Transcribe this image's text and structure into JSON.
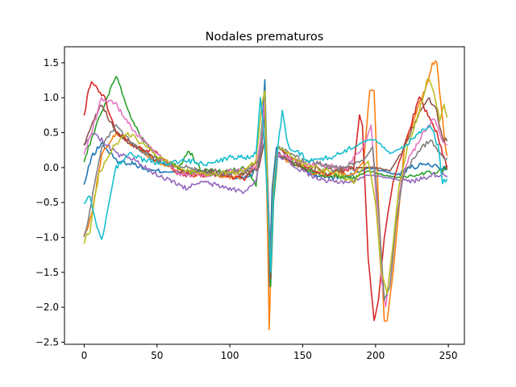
{
  "chart_data": {
    "type": "line",
    "title": "Nodales prematuros",
    "xlabel": "",
    "ylabel": "",
    "xlim": [
      -13.5,
      261
    ],
    "ylim": [
      -2.53,
      1.73
    ],
    "x_ticks": [
      0,
      50,
      100,
      150,
      200,
      250
    ],
    "x_tick_labels": [
      "0",
      "50",
      "100",
      "150",
      "200",
      "250"
    ],
    "y_ticks": [
      -2.5,
      -2.0,
      -1.5,
      -1.0,
      -0.5,
      0.0,
      0.5,
      1.0,
      1.5
    ],
    "y_tick_labels": [
      "−2.5",
      "−2.0",
      "−1.5",
      "−1.0",
      "−0.5",
      "0.0",
      "0.5",
      "1.0",
      "1.5"
    ],
    "grid": false,
    "legend": "none",
    "x_range": [
      0,
      249
    ],
    "series_keypoints_note": "approximate shape keypoints [x, y] per beat",
    "series": [
      {
        "color": "#1f77b4",
        "points": [
          [
            0,
            -0.25
          ],
          [
            5,
            0.15
          ],
          [
            12,
            0.35
          ],
          [
            22,
            0.1
          ],
          [
            35,
            0.05
          ],
          [
            45,
            -0.05
          ],
          [
            60,
            -0.05
          ],
          [
            70,
            -0.1
          ],
          [
            80,
            -0.05
          ],
          [
            95,
            -0.1
          ],
          [
            105,
            -0.15
          ],
          [
            115,
            -0.1
          ],
          [
            121,
            0.2
          ],
          [
            124,
            1.25
          ],
          [
            126,
            -0.3
          ],
          [
            127,
            -1.7
          ],
          [
            129,
            -0.3
          ],
          [
            132,
            0.3
          ],
          [
            140,
            0.2
          ],
          [
            155,
            -0.1
          ],
          [
            170,
            -0.15
          ],
          [
            185,
            -0.1
          ],
          [
            195,
            0.0
          ],
          [
            205,
            -0.05
          ],
          [
            215,
            -0.1
          ],
          [
            225,
            0.0
          ],
          [
            235,
            0.05
          ],
          [
            245,
            0.0
          ],
          [
            249,
            0.0
          ]
        ]
      },
      {
        "color": "#ff7f0e",
        "points": [
          [
            0,
            -1.0
          ],
          [
            5,
            -0.7
          ],
          [
            12,
            0.2
          ],
          [
            22,
            0.5
          ],
          [
            35,
            0.3
          ],
          [
            50,
            0.1
          ],
          [
            70,
            -0.1
          ],
          [
            90,
            -0.1
          ],
          [
            105,
            -0.15
          ],
          [
            118,
            0.0
          ],
          [
            122,
            0.5
          ],
          [
            124,
            0.9
          ],
          [
            126,
            -1.0
          ],
          [
            127,
            -2.32
          ],
          [
            129,
            -0.8
          ],
          [
            132,
            0.2
          ],
          [
            140,
            0.1
          ],
          [
            160,
            -0.1
          ],
          [
            185,
            -0.1
          ],
          [
            192,
            0.1
          ],
          [
            196,
            1.1
          ],
          [
            199,
            1.1
          ],
          [
            202,
            -0.5
          ],
          [
            206,
            -2.2
          ],
          [
            208,
            -2.2
          ],
          [
            212,
            -1.5
          ],
          [
            216,
            -0.6
          ],
          [
            220,
            0.3
          ],
          [
            228,
            0.8
          ],
          [
            234,
            1.1
          ],
          [
            239,
            1.5
          ],
          [
            242,
            1.5
          ],
          [
            245,
            0.9
          ],
          [
            248,
            0.3
          ],
          [
            249,
            0.2
          ]
        ]
      },
      {
        "color": "#2ca02c",
        "points": [
          [
            0,
            0.1
          ],
          [
            5,
            0.4
          ],
          [
            12,
            0.8
          ],
          [
            22,
            1.33
          ],
          [
            30,
            0.8
          ],
          [
            40,
            0.4
          ],
          [
            50,
            0.15
          ],
          [
            65,
            0.0
          ],
          [
            72,
            0.25
          ],
          [
            80,
            -0.05
          ],
          [
            100,
            -0.05
          ],
          [
            112,
            0.0
          ],
          [
            118,
            -0.25
          ],
          [
            122,
            0.6
          ],
          [
            124,
            0.9
          ],
          [
            126,
            -0.2
          ],
          [
            128,
            -1.7
          ],
          [
            130,
            -0.5
          ],
          [
            133,
            0.2
          ],
          [
            140,
            0.1
          ],
          [
            160,
            -0.1
          ],
          [
            185,
            -0.15
          ],
          [
            195,
            -0.05
          ],
          [
            205,
            -0.1
          ],
          [
            215,
            -0.15
          ],
          [
            230,
            -0.1
          ],
          [
            245,
            -0.05
          ],
          [
            249,
            0.0
          ]
        ]
      },
      {
        "color": "#d62728",
        "points": [
          [
            0,
            0.75
          ],
          [
            3,
            1.1
          ],
          [
            5,
            1.25
          ],
          [
            8,
            1.15
          ],
          [
            14,
            1.0
          ],
          [
            22,
            0.5
          ],
          [
            35,
            0.3
          ],
          [
            50,
            0.2
          ],
          [
            65,
            -0.1
          ],
          [
            90,
            -0.1
          ],
          [
            110,
            -0.15
          ],
          [
            120,
            0.1
          ],
          [
            124,
            0.8
          ],
          [
            126,
            -0.3
          ],
          [
            128,
            -1.5
          ],
          [
            130,
            -0.2
          ],
          [
            133,
            0.3
          ],
          [
            145,
            0.1
          ],
          [
            165,
            -0.1
          ],
          [
            185,
            0.0
          ],
          [
            189,
            0.75
          ],
          [
            191,
            0.6
          ],
          [
            195,
            -1.3
          ],
          [
            199,
            -2.2
          ],
          [
            202,
            -1.9
          ],
          [
            206,
            -1.0
          ],
          [
            212,
            -0.2
          ],
          [
            218,
            0.2
          ],
          [
            224,
            0.6
          ],
          [
            230,
            1.0
          ],
          [
            235,
            0.8
          ],
          [
            242,
            0.5
          ],
          [
            249,
            0.0
          ]
        ]
      },
      {
        "color": "#9467bd",
        "points": [
          [
            0,
            0.3
          ],
          [
            5,
            0.5
          ],
          [
            12,
            0.4
          ],
          [
            22,
            0.2
          ],
          [
            35,
            0.1
          ],
          [
            45,
            -0.05
          ],
          [
            55,
            -0.15
          ],
          [
            70,
            -0.3
          ],
          [
            80,
            -0.2
          ],
          [
            100,
            -0.3
          ],
          [
            110,
            -0.35
          ],
          [
            118,
            -0.2
          ],
          [
            122,
            0.3
          ],
          [
            124,
            0.8
          ],
          [
            126,
            -0.2
          ],
          [
            128,
            -1.5
          ],
          [
            130,
            -0.3
          ],
          [
            133,
            0.2
          ],
          [
            145,
            0.0
          ],
          [
            165,
            -0.2
          ],
          [
            185,
            -0.2
          ],
          [
            195,
            -0.1
          ],
          [
            210,
            -0.15
          ],
          [
            225,
            -0.2
          ],
          [
            240,
            -0.1
          ],
          [
            249,
            -0.1
          ]
        ]
      },
      {
        "color": "#8c564b",
        "points": [
          [
            0,
            0.35
          ],
          [
            5,
            0.6
          ],
          [
            12,
            0.9
          ],
          [
            22,
            0.5
          ],
          [
            35,
            0.3
          ],
          [
            50,
            0.1
          ],
          [
            70,
            -0.05
          ],
          [
            90,
            -0.05
          ],
          [
            110,
            -0.1
          ],
          [
            120,
            0.0
          ],
          [
            124,
            0.4
          ],
          [
            126,
            -0.5
          ],
          [
            128,
            -1.6
          ],
          [
            130,
            -0.4
          ],
          [
            133,
            0.2
          ],
          [
            150,
            0.0
          ],
          [
            175,
            -0.05
          ],
          [
            190,
            0.0
          ],
          [
            200,
            0.0
          ],
          [
            210,
            -0.05
          ],
          [
            220,
            0.3
          ],
          [
            230,
            0.8
          ],
          [
            236,
            1.0
          ],
          [
            242,
            0.8
          ],
          [
            246,
            0.4
          ],
          [
            249,
            0.4
          ]
        ]
      },
      {
        "color": "#e377c2",
        "points": [
          [
            0,
            0.2
          ],
          [
            5,
            0.5
          ],
          [
            12,
            1.0
          ],
          [
            22,
            0.9
          ],
          [
            35,
            0.5
          ],
          [
            50,
            0.2
          ],
          [
            65,
            -0.1
          ],
          [
            85,
            -0.1
          ],
          [
            105,
            -0.05
          ],
          [
            118,
            0.0
          ],
          [
            122,
            0.5
          ],
          [
            124,
            1.0
          ],
          [
            126,
            -0.4
          ],
          [
            128,
            -1.4
          ],
          [
            130,
            -0.3
          ],
          [
            133,
            0.2
          ],
          [
            150,
            0.05
          ],
          [
            180,
            0.0
          ],
          [
            192,
            0.3
          ],
          [
            197,
            0.6
          ],
          [
            200,
            -0.3
          ],
          [
            204,
            -1.6
          ],
          [
            207,
            -2.0
          ],
          [
            211,
            -1.3
          ],
          [
            215,
            -0.5
          ],
          [
            220,
            0.0
          ],
          [
            230,
            0.4
          ],
          [
            240,
            0.7
          ],
          [
            246,
            0.4
          ],
          [
            249,
            0.3
          ]
        ]
      },
      {
        "color": "#7f7f7f",
        "points": [
          [
            0,
            -1.0
          ],
          [
            5,
            -0.5
          ],
          [
            12,
            0.3
          ],
          [
            22,
            0.6
          ],
          [
            35,
            0.3
          ],
          [
            50,
            0.1
          ],
          [
            70,
            0.0
          ],
          [
            90,
            -0.1
          ],
          [
            110,
            -0.05
          ],
          [
            120,
            0.1
          ],
          [
            124,
            0.7
          ],
          [
            126,
            -0.3
          ],
          [
            128,
            -1.4
          ],
          [
            130,
            -0.2
          ],
          [
            133,
            0.3
          ],
          [
            150,
            0.1
          ],
          [
            175,
            0.0
          ],
          [
            192,
            0.1
          ],
          [
            198,
            0.3
          ],
          [
            202,
            -0.6
          ],
          [
            206,
            -1.9
          ],
          [
            210,
            -1.7
          ],
          [
            214,
            -0.8
          ],
          [
            219,
            -0.1
          ],
          [
            228,
            0.2
          ],
          [
            238,
            0.4
          ],
          [
            245,
            0.2
          ],
          [
            249,
            0.1
          ]
        ]
      },
      {
        "color": "#bcbd22",
        "points": [
          [
            0,
            -1.05
          ],
          [
            4,
            -0.9
          ],
          [
            10,
            -0.1
          ],
          [
            20,
            0.3
          ],
          [
            30,
            0.5
          ],
          [
            42,
            0.3
          ],
          [
            55,
            0.1
          ],
          [
            70,
            -0.05
          ],
          [
            90,
            -0.1
          ],
          [
            110,
            -0.05
          ],
          [
            118,
            0.1
          ],
          [
            122,
            0.9
          ],
          [
            124,
            1.1
          ],
          [
            126,
            -0.5
          ],
          [
            128,
            -1.5
          ],
          [
            130,
            -0.3
          ],
          [
            133,
            0.3
          ],
          [
            150,
            0.05
          ],
          [
            175,
            -0.1
          ],
          [
            185,
            -0.2
          ],
          [
            195,
            0.1
          ],
          [
            200,
            -0.5
          ],
          [
            204,
            -1.5
          ],
          [
            208,
            -1.8
          ],
          [
            212,
            -1.1
          ],
          [
            216,
            -0.3
          ],
          [
            222,
            0.3
          ],
          [
            230,
            0.8
          ],
          [
            236,
            1.3
          ],
          [
            240,
            1.1
          ],
          [
            244,
            0.7
          ],
          [
            247,
            0.9
          ],
          [
            249,
            0.7
          ]
        ]
      },
      {
        "color": "#17becf",
        "points": [
          [
            0,
            -0.5
          ],
          [
            4,
            -0.4
          ],
          [
            8,
            -0.8
          ],
          [
            12,
            -1.05
          ],
          [
            16,
            -0.6
          ],
          [
            22,
            0.0
          ],
          [
            30,
            0.2
          ],
          [
            42,
            0.1
          ],
          [
            55,
            0.05
          ],
          [
            70,
            0.1
          ],
          [
            85,
            0.05
          ],
          [
            100,
            0.15
          ],
          [
            112,
            0.15
          ],
          [
            118,
            0.2
          ],
          [
            121,
            1.0
          ],
          [
            123,
            0.6
          ],
          [
            126,
            -0.5
          ],
          [
            128,
            -1.5
          ],
          [
            130,
            -0.4
          ],
          [
            133,
            0.3
          ],
          [
            136,
            0.8
          ],
          [
            140,
            0.3
          ],
          [
            155,
            0.1
          ],
          [
            170,
            0.15
          ],
          [
            185,
            0.3
          ],
          [
            195,
            0.4
          ],
          [
            200,
            0.4
          ],
          [
            210,
            0.2
          ],
          [
            220,
            0.3
          ],
          [
            230,
            0.5
          ],
          [
            238,
            0.6
          ],
          [
            243,
            0.3
          ],
          [
            246,
            -0.2
          ],
          [
            249,
            -0.2
          ]
        ]
      }
    ]
  }
}
